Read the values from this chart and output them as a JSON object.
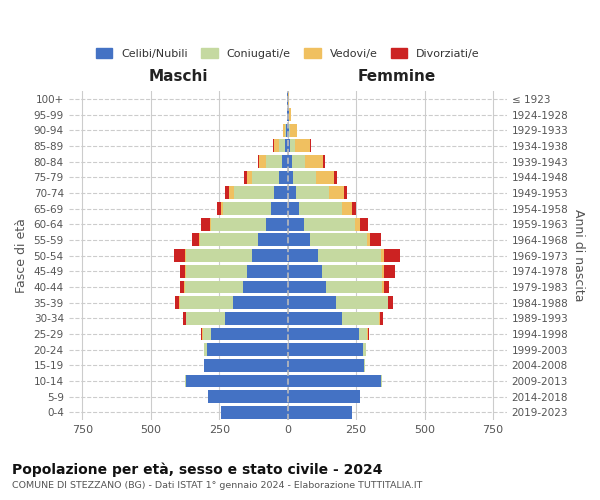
{
  "age_groups": [
    "0-4",
    "5-9",
    "10-14",
    "15-19",
    "20-24",
    "25-29",
    "30-34",
    "35-39",
    "40-44",
    "45-49",
    "50-54",
    "55-59",
    "60-64",
    "65-69",
    "70-74",
    "75-79",
    "80-84",
    "85-89",
    "90-94",
    "95-99",
    "100+"
  ],
  "birth_years": [
    "2019-2023",
    "2014-2018",
    "2009-2013",
    "2004-2008",
    "1999-2003",
    "1994-1998",
    "1989-1993",
    "1984-1988",
    "1979-1983",
    "1974-1978",
    "1969-1973",
    "1964-1968",
    "1959-1963",
    "1954-1958",
    "1949-1953",
    "1944-1948",
    "1939-1943",
    "1934-1938",
    "1929-1933",
    "1924-1928",
    "≤ 1923"
  ],
  "colors": {
    "celibi": "#4472c4",
    "coniugati": "#c5d9a0",
    "vedovi": "#f0c060",
    "divorziati": "#cc2222"
  },
  "maschi": {
    "celibi": [
      245,
      290,
      370,
      305,
      295,
      280,
      230,
      200,
      165,
      150,
      130,
      110,
      80,
      60,
      50,
      30,
      20,
      10,
      5,
      2,
      2
    ],
    "coniugati": [
      0,
      0,
      5,
      2,
      10,
      30,
      140,
      195,
      210,
      220,
      240,
      210,
      200,
      175,
      145,
      100,
      60,
      20,
      5,
      0,
      0
    ],
    "vedovi": [
      0,
      0,
      0,
      0,
      0,
      2,
      2,
      2,
      3,
      5,
      5,
      5,
      5,
      10,
      20,
      20,
      25,
      20,
      8,
      2,
      0
    ],
    "divorziati": [
      0,
      0,
      0,
      0,
      2,
      5,
      10,
      15,
      15,
      20,
      40,
      25,
      30,
      15,
      15,
      8,
      5,
      2,
      0,
      0,
      0
    ]
  },
  "femmine": {
    "celibi": [
      235,
      265,
      340,
      280,
      275,
      260,
      200,
      175,
      140,
      125,
      110,
      80,
      60,
      40,
      30,
      20,
      15,
      8,
      5,
      3,
      2
    ],
    "coniugati": [
      0,
      0,
      5,
      2,
      10,
      30,
      135,
      190,
      205,
      220,
      230,
      210,
      185,
      160,
      120,
      85,
      50,
      20,
      5,
      2,
      0
    ],
    "vedovi": [
      0,
      0,
      0,
      0,
      0,
      2,
      2,
      3,
      5,
      8,
      10,
      10,
      20,
      35,
      55,
      65,
      65,
      55,
      25,
      8,
      2
    ],
    "divorziati": [
      0,
      0,
      0,
      0,
      2,
      5,
      10,
      15,
      20,
      40,
      60,
      40,
      30,
      15,
      10,
      10,
      5,
      2,
      0,
      0,
      0
    ]
  },
  "title": "Popolazione per età, sesso e stato civile - 2024",
  "subtitle": "COMUNE DI STEZZANO (BG) - Dati ISTAT 1° gennaio 2024 - Elaborazione TUTTITALIA.IT",
  "xlabel_left": "Maschi",
  "xlabel_right": "Femmine",
  "ylabel_left": "Fasce di età",
  "ylabel_right": "Anni di nascita",
  "xlim": 800,
  "background_color": "#ffffff",
  "grid_color": "#cccccc",
  "legend_labels": [
    "Celibi/Nubili",
    "Coniugati/e",
    "Vedovi/e",
    "Divorziati/e"
  ]
}
